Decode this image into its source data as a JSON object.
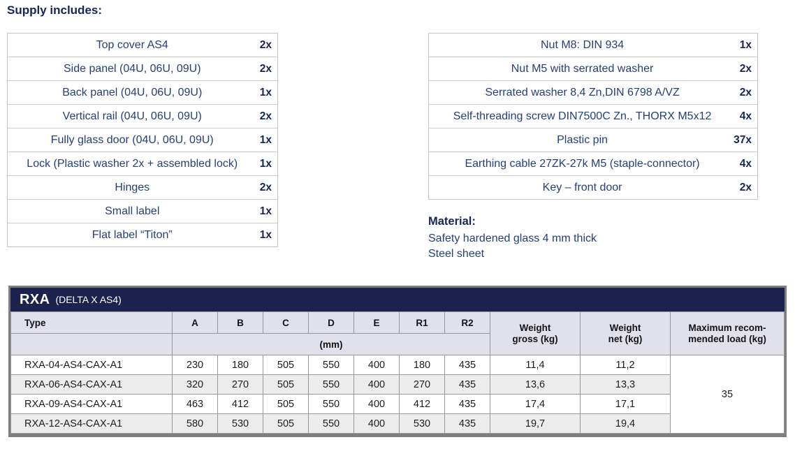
{
  "page": {
    "supply_title": "Supply includes:"
  },
  "supply_left": [
    {
      "item": "Top cover AS4",
      "qty": "2x"
    },
    {
      "item": "Side panel (04U, 06U, 09U)",
      "qty": "2x"
    },
    {
      "item": "Back panel (04U, 06U, 09U)",
      "qty": "1x"
    },
    {
      "item": "Vertical rail (04U, 06U, 09U)",
      "qty": "2x"
    },
    {
      "item": "Fully glass door (04U, 06U, 09U)",
      "qty": "1x"
    },
    {
      "item": "Lock (Plastic washer 2x + assembled lock)",
      "qty": "1x"
    },
    {
      "item": "Hinges",
      "qty": "2x"
    },
    {
      "item": "Small label",
      "qty": "1x"
    },
    {
      "item": "Flat label “Titon”",
      "qty": "1x"
    }
  ],
  "supply_right": [
    {
      "item": "Nut M8: DIN 934",
      "qty": "1x"
    },
    {
      "item": "Nut M5 with serrated washer",
      "qty": "2x"
    },
    {
      "item": "Serrated washer 8,4 Zn,DIN 6798 A/VZ",
      "qty": "2x"
    },
    {
      "item": "Self-threading screw DIN7500C Zn., THORX M5x12",
      "qty": "4x"
    },
    {
      "item": "Plastic pin",
      "qty": "37x"
    },
    {
      "item": "Earthing cable 27ZK-27k M5 (staple-connector)",
      "qty": "4x"
    },
    {
      "item": "Key – front door",
      "qty": "2x"
    }
  ],
  "material": {
    "title": "Material:",
    "lines": [
      "Safety hardened glass 4 mm thick",
      "Steel sheet"
    ]
  },
  "spec_table": {
    "title": "RXA",
    "subtitle": "(DELTA X AS4)",
    "type_label": "Type",
    "dim_cols": [
      "A",
      "B",
      "C",
      "D",
      "E",
      "R1",
      "R2"
    ],
    "unit_label": "(mm)",
    "weight_gross_lines": [
      "Weight",
      "gross (kg)"
    ],
    "weight_net_lines": [
      "Weight",
      "net (kg)"
    ],
    "max_load_lines": [
      "Maximum recom-",
      "mended load (kg)"
    ],
    "max_load_value": "35",
    "rows": [
      {
        "type": "RXA-04-AS4-CAX-A1",
        "A": "230",
        "B": "180",
        "C": "505",
        "D": "550",
        "E": "400",
        "R1": "180",
        "R2": "435",
        "gross": "11,4",
        "net": "11,2"
      },
      {
        "type": "RXA-06-AS4-CAX-A1",
        "A": "320",
        "B": "270",
        "C": "505",
        "D": "550",
        "E": "400",
        "R1": "270",
        "R2": "435",
        "gross": "13,6",
        "net": "13,3"
      },
      {
        "type": "RXA-09-AS4-CAX-A1",
        "A": "463",
        "B": "412",
        "C": "505",
        "D": "550",
        "E": "400",
        "R1": "412",
        "R2": "435",
        "gross": "17,4",
        "net": "17,1"
      },
      {
        "type": "RXA-12-AS4-CAX-A1",
        "A": "580",
        "B": "530",
        "C": "505",
        "D": "550",
        "E": "400",
        "R1": "530",
        "R2": "435",
        "gross": "19,7",
        "net": "19,4"
      }
    ]
  },
  "colors": {
    "navy": "#24407a",
    "navy_dark": "#14265a",
    "table_title_bg": "#1a224d",
    "table_header_bg": "#e1e1eb",
    "stripe": "#ececec"
  }
}
